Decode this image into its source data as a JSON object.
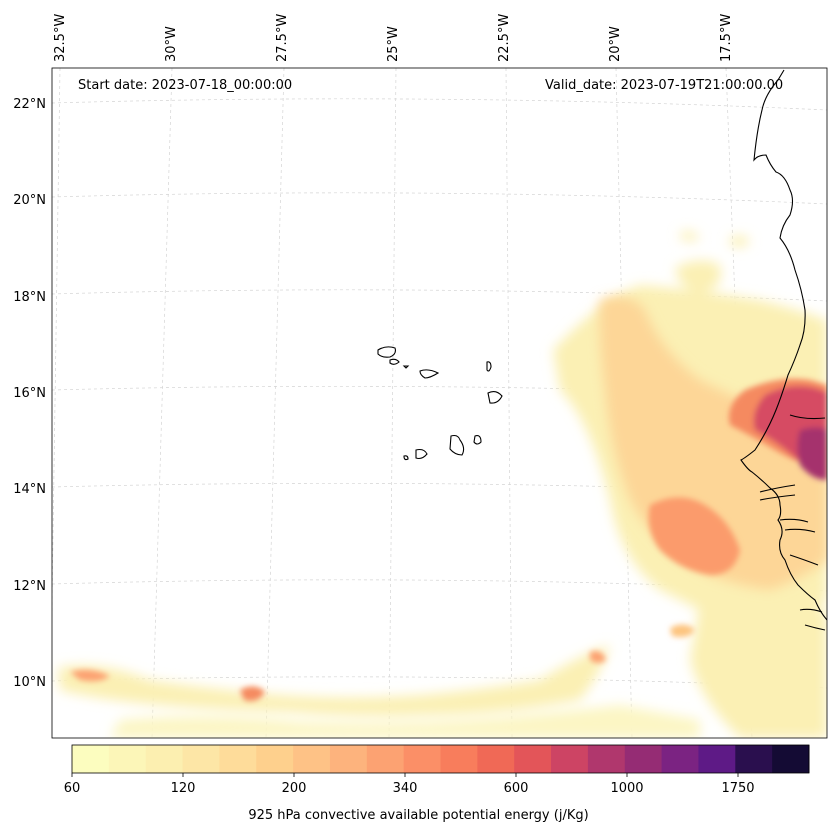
{
  "header": {
    "start_date": "Start date: 2023-07-18_00:00:00",
    "valid_date": "Valid_date: 2023-07-19T21:00:00.00"
  },
  "map": {
    "projection": "polar stereographic (curved graticule)",
    "gridlines": true,
    "coastline_color": "#000000",
    "lon_labels": [
      {
        "lon": -32.5,
        "text": "32.5°W"
      },
      {
        "lon": -30,
        "text": "30°W"
      },
      {
        "lon": -27.5,
        "text": "27.5°W"
      },
      {
        "lon": -25,
        "text": "25°W"
      },
      {
        "lon": -22.5,
        "text": "22.5°W"
      },
      {
        "lon": -20,
        "text": "20°W"
      },
      {
        "lon": -17.5,
        "text": "17.5°W"
      }
    ],
    "lat_labels": [
      {
        "lat": 22,
        "text": "22°N"
      },
      {
        "lat": 20,
        "text": "20°N"
      },
      {
        "lat": 18,
        "text": "18°N"
      },
      {
        "lat": 16,
        "text": "16°N"
      },
      {
        "lat": 14,
        "text": "14°N"
      },
      {
        "lat": 12,
        "text": "12°N"
      },
      {
        "lat": 10,
        "text": "10°N"
      }
    ]
  },
  "colorbar": {
    "label": "925 hPa convective available potential energy (j/Kg)",
    "colormap": "magma_r",
    "colors": [
      "#fcfdbf",
      "#fcf6b8",
      "#fcefb0",
      "#fde6a6",
      "#fedc9a",
      "#fed08d",
      "#fec286",
      "#fdb37d",
      "#fca272",
      "#fb8f67",
      "#f87d5c",
      "#f06956",
      "#e35559",
      "#cd4464",
      "#b0376d",
      "#952c74",
      "#7b2382",
      "#5e1a86",
      "#2a0f4e",
      "#140b34"
    ],
    "ticks": [
      {
        "value": 60,
        "text": "60"
      },
      {
        "value": 120,
        "text": "120"
      },
      {
        "value": 200,
        "text": "200"
      },
      {
        "value": 340,
        "text": "340"
      },
      {
        "value": 600,
        "text": "600"
      },
      {
        "value": 1000,
        "text": "1000"
      },
      {
        "value": 1750,
        "text": "1750"
      }
    ]
  }
}
